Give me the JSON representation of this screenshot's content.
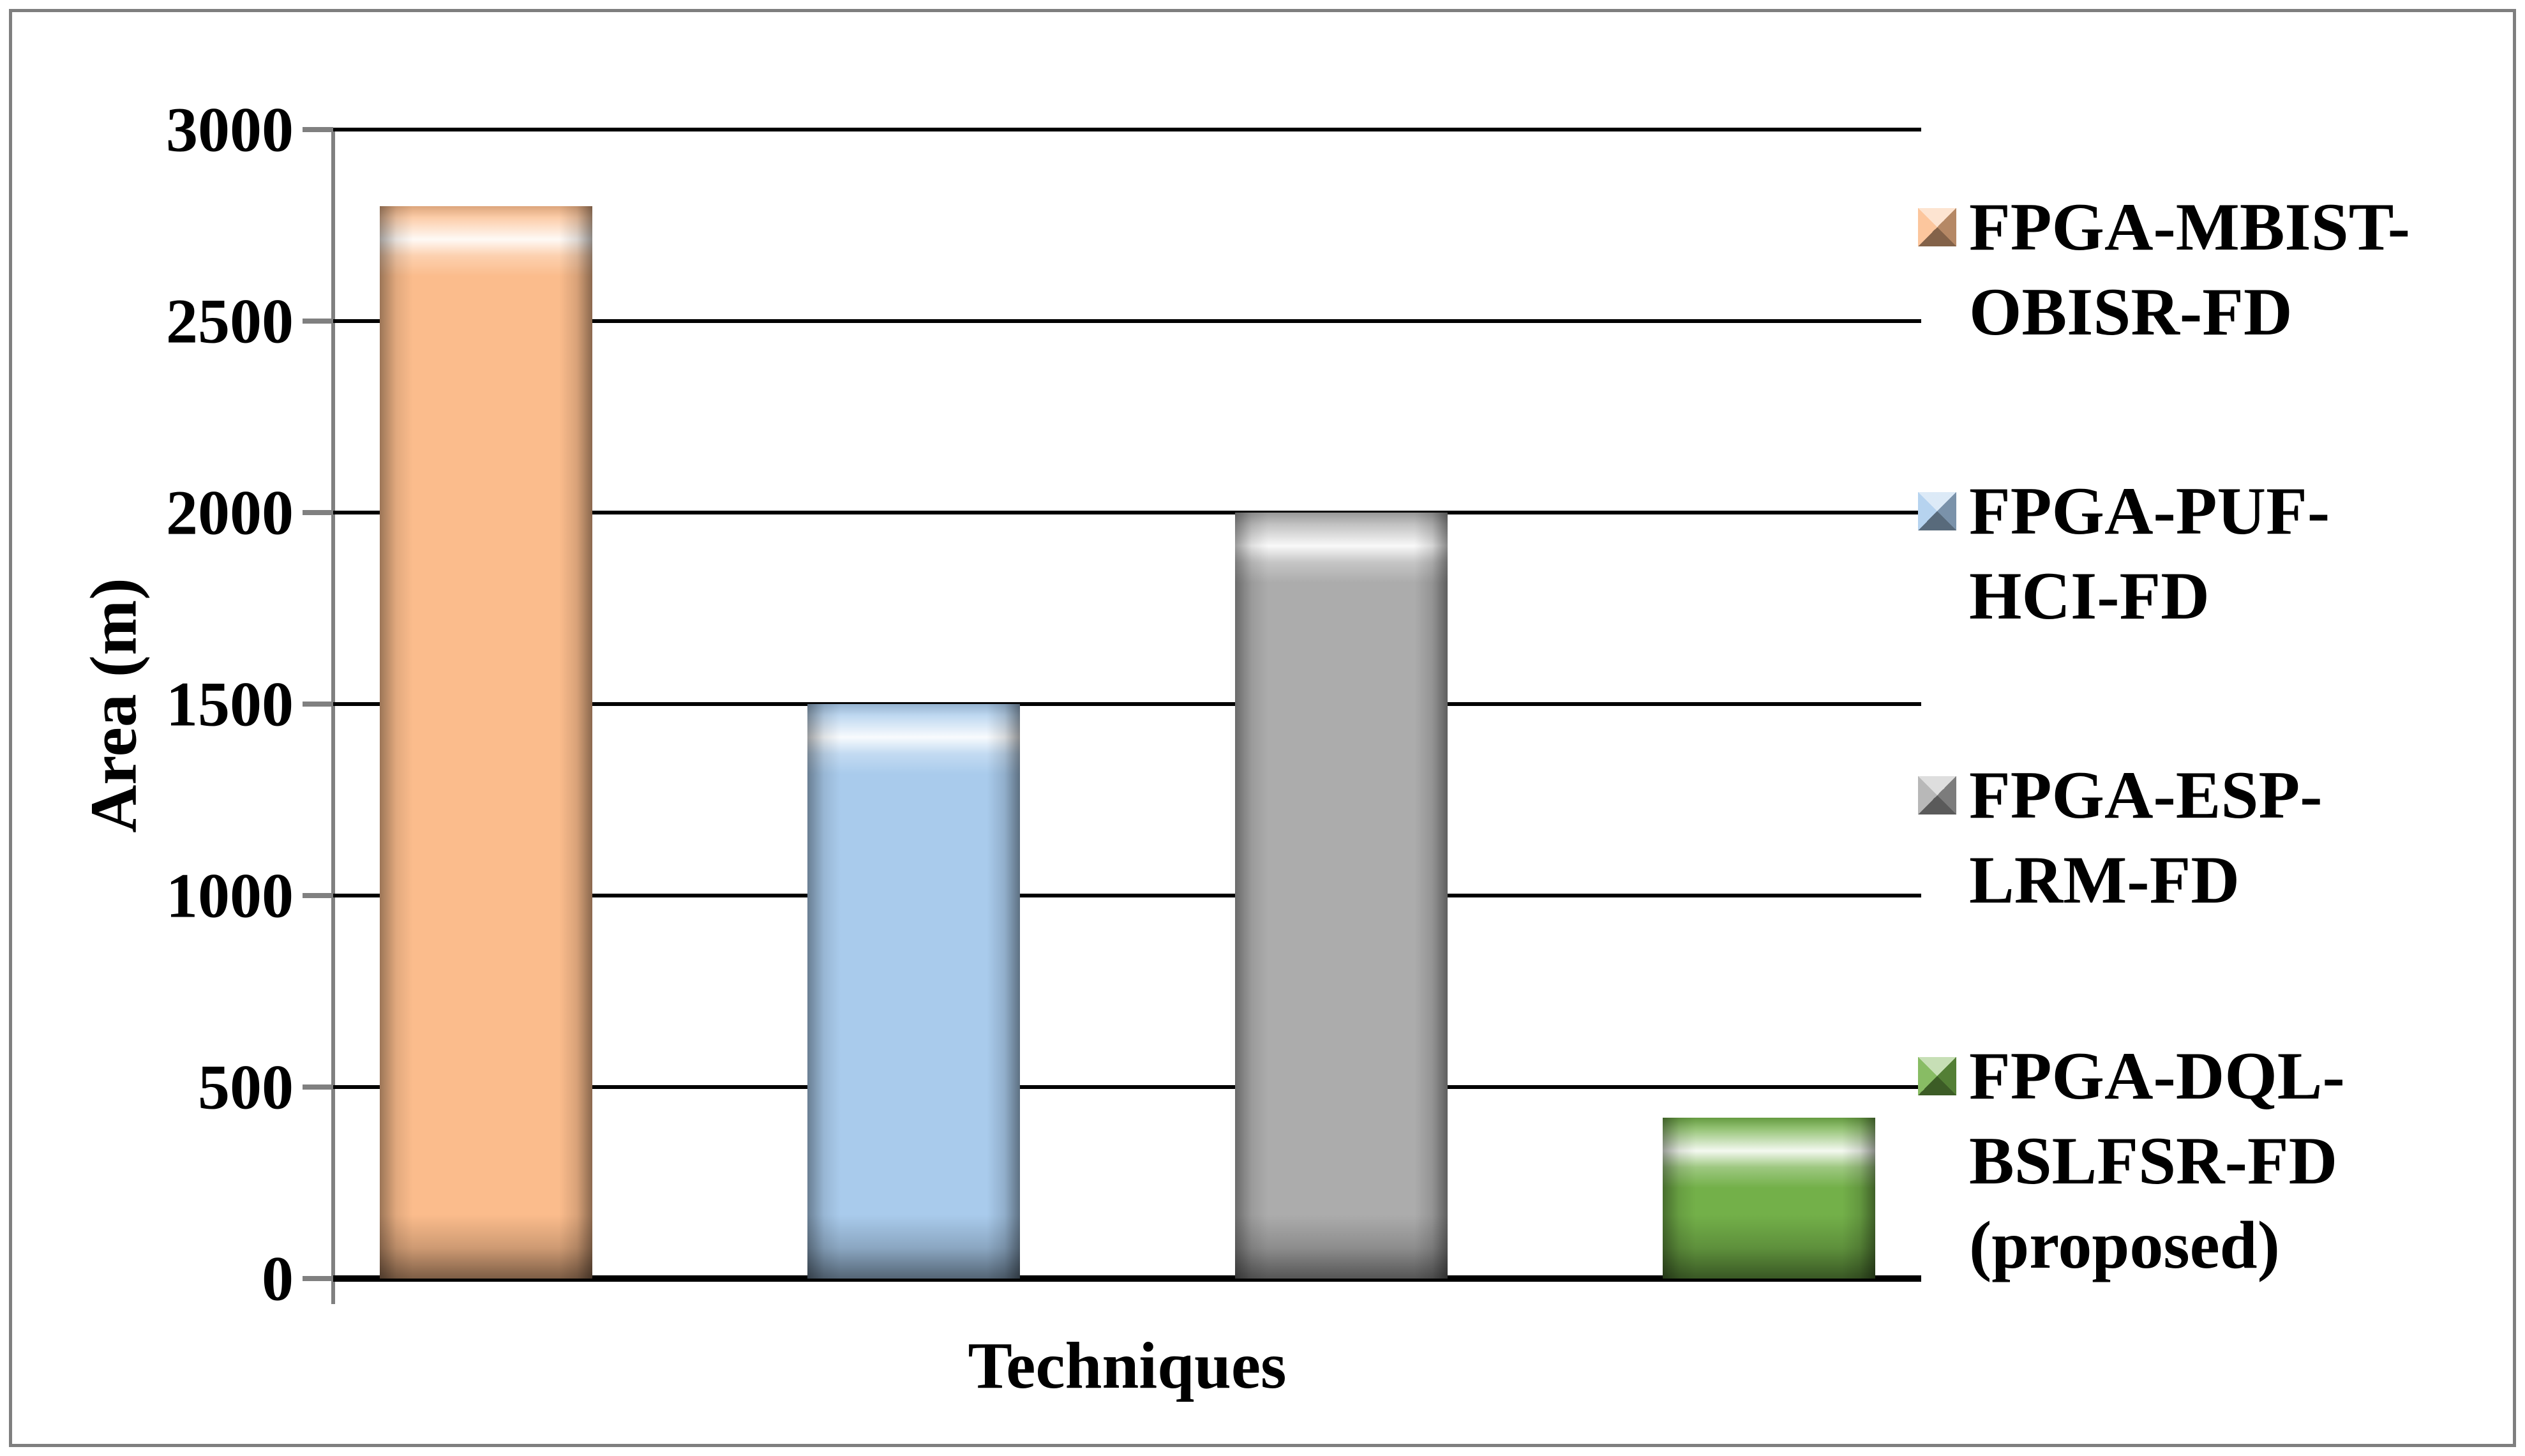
{
  "chart_data": {
    "type": "bar",
    "title": "",
    "xlabel": "Techniques",
    "ylabel": "Area (m)",
    "ylim": [
      0,
      3000
    ],
    "ytick_step": 500,
    "yticks": [
      3000,
      2500,
      2000,
      1500,
      1000,
      500,
      0
    ],
    "grid": true,
    "legend_position": "right",
    "categories": [
      "FPGA-MBIST-OBISR-FD",
      "FPGA-PUF-HCI-FD",
      "FPGA-ESP-LRM-FD",
      "FPGA-DQL-BSLFSR-FD (proposed)"
    ],
    "values": [
      2800,
      1500,
      2000,
      420
    ],
    "bars": [
      {
        "label": "FPGA-MBIST-OBISR-FD",
        "value": 2800,
        "color": "#FBBC8C"
      },
      {
        "label": "FPGA-PUF-HCI-FD",
        "value": 1500,
        "color": "#A9CBEC"
      },
      {
        "label": "FPGA-ESP-LRM-FD",
        "value": 2000,
        "color": "#ACACAC"
      },
      {
        "label": "FPGA-DQL-BSLFSR-FD (proposed)",
        "value": 420,
        "color": "#73B049"
      }
    ],
    "axis_color": "#808080",
    "gridline_color": "#000000",
    "frame_border_color": "#7F7F7F",
    "text_color": "#000000"
  }
}
